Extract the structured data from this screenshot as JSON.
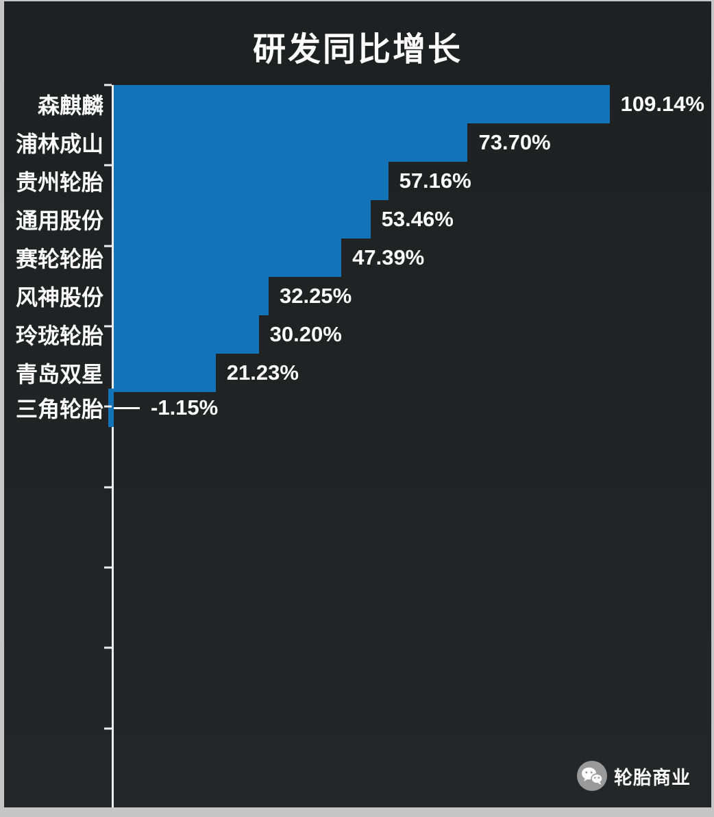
{
  "title": "研发同比增长",
  "colors": {
    "background": "#212325",
    "bar": "#1273b9",
    "text": "#ffffff",
    "axis": "#eeeeee"
  },
  "watermark": {
    "label": "轮胎商业",
    "icon": "wechat-icon"
  },
  "chart_data": {
    "type": "bar",
    "orientation": "horizontal",
    "title": "研发同比增长",
    "categories": [
      "森麒麟",
      "浦林成山",
      "贵州轮胎",
      "通用股份",
      "赛轮轮胎",
      "风神股份",
      "玲珑轮胎",
      "青岛双星",
      "三角轮胎"
    ],
    "values": [
      109.14,
      73.7,
      57.16,
      53.46,
      47.39,
      32.25,
      30.2,
      21.23,
      -1.15
    ],
    "labels": [
      "109.14%",
      "73.70%",
      "57.16%",
      "53.46%",
      "47.39%",
      "32.25%",
      "30.20%",
      "21.23%",
      "-1.15%"
    ],
    "xlabel": "",
    "ylabel": "",
    "xlim": [
      0,
      123
    ],
    "grid": false,
    "legend": false,
    "bar_color": "#1273b9",
    "value_label_position": "right-of-bar"
  }
}
